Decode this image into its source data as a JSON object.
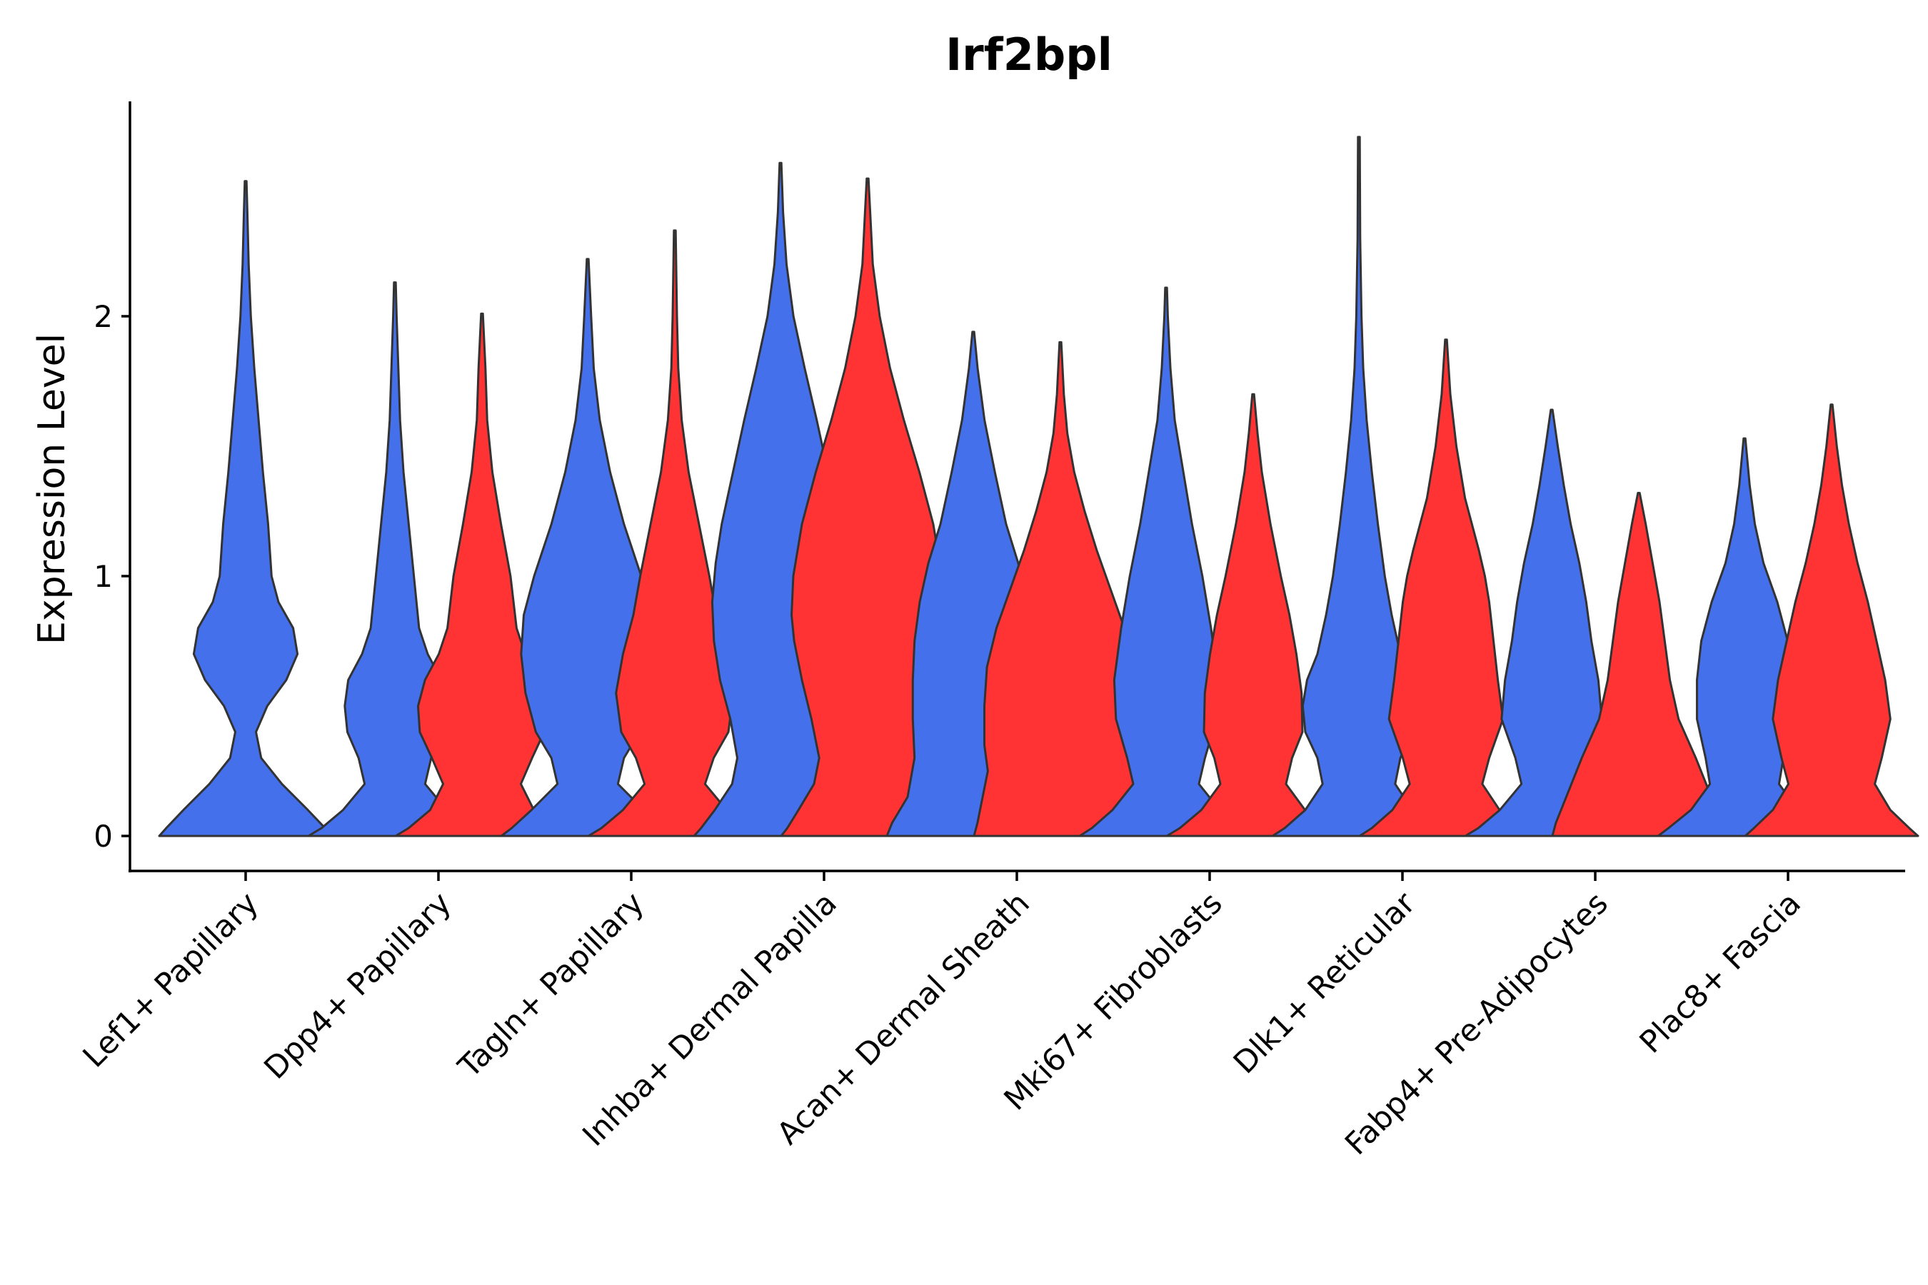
{
  "chart_data": {
    "type": "violin",
    "title": "Irf2bpl",
    "xlabel": "",
    "ylabel": "Expression Level",
    "ylim": [
      -0.14,
      2.82
    ],
    "yticks": [
      0,
      1,
      2
    ],
    "grid": false,
    "legend": "none",
    "colors": {
      "group1": "#4570EC",
      "group2": "#FF3333",
      "outline": "#333333"
    },
    "categories": [
      "Lef1+ Papillary",
      "Dpp4+ Papillary",
      "Tagln+ Papillary",
      "Inhba+ Dermal Papilla",
      "Acan+ Dermal Sheath",
      "Mki67+ Fibroblasts",
      "Dlk1+ Reticular",
      "Fabp4+ Pre-Adipocytes",
      "Plac8+ Fascia"
    ],
    "series": [
      {
        "name": "group1",
        "color": "#4570EC",
        "max": [
          2.52,
          2.13,
          2.22,
          2.59,
          1.94,
          2.11,
          2.69,
          1.64,
          1.53
        ]
      },
      {
        "name": "group2",
        "color": "#FF3333",
        "max": [
          null,
          2.01,
          2.33,
          2.53,
          1.9,
          1.7,
          1.91,
          1.32,
          1.66
        ]
      }
    ],
    "violins": [
      {
        "category": 0,
        "group": 0,
        "max": 2.52,
        "profile": [
          [
            0,
            1
          ],
          [
            0.03,
            0.92
          ],
          [
            0.1,
            0.72
          ],
          [
            0.2,
            0.42
          ],
          [
            0.3,
            0.18
          ],
          [
            0.4,
            0.12
          ],
          [
            0.5,
            0.25
          ],
          [
            0.6,
            0.47
          ],
          [
            0.7,
            0.6
          ],
          [
            0.8,
            0.55
          ],
          [
            0.9,
            0.38
          ],
          [
            1.0,
            0.3
          ],
          [
            1.2,
            0.26
          ],
          [
            1.4,
            0.2
          ],
          [
            1.6,
            0.15
          ],
          [
            1.8,
            0.1
          ],
          [
            2.0,
            0.06
          ],
          [
            2.2,
            0.035
          ],
          [
            2.4,
            0.02
          ],
          [
            2.52,
            0.01
          ]
        ]
      },
      {
        "category": 1,
        "group": 0,
        "max": 2.13,
        "profile": [
          [
            0,
            1
          ],
          [
            0.03,
            0.85
          ],
          [
            0.1,
            0.6
          ],
          [
            0.2,
            0.35
          ],
          [
            0.3,
            0.42
          ],
          [
            0.4,
            0.55
          ],
          [
            0.5,
            0.58
          ],
          [
            0.6,
            0.54
          ],
          [
            0.7,
            0.38
          ],
          [
            0.8,
            0.28
          ],
          [
            1.0,
            0.22
          ],
          [
            1.2,
            0.16
          ],
          [
            1.4,
            0.1
          ],
          [
            1.6,
            0.06
          ],
          [
            1.8,
            0.04
          ],
          [
            2.0,
            0.02
          ],
          [
            2.13,
            0.01
          ]
        ]
      },
      {
        "category": 1,
        "group": 1,
        "max": 2.01,
        "profile": [
          [
            0,
            1
          ],
          [
            0.03,
            0.85
          ],
          [
            0.1,
            0.6
          ],
          [
            0.2,
            0.45
          ],
          [
            0.3,
            0.58
          ],
          [
            0.4,
            0.72
          ],
          [
            0.5,
            0.74
          ],
          [
            0.6,
            0.66
          ],
          [
            0.7,
            0.5
          ],
          [
            0.8,
            0.4
          ],
          [
            1.0,
            0.33
          ],
          [
            1.2,
            0.22
          ],
          [
            1.4,
            0.12
          ],
          [
            1.6,
            0.06
          ],
          [
            1.8,
            0.04
          ],
          [
            2.01,
            0.01
          ]
        ]
      },
      {
        "category": 2,
        "group": 0,
        "max": 2.22,
        "profile": [
          [
            0,
            1
          ],
          [
            0.03,
            0.88
          ],
          [
            0.1,
            0.65
          ],
          [
            0.2,
            0.35
          ],
          [
            0.3,
            0.42
          ],
          [
            0.4,
            0.6
          ],
          [
            0.55,
            0.72
          ],
          [
            0.7,
            0.77
          ],
          [
            0.85,
            0.74
          ],
          [
            1.0,
            0.62
          ],
          [
            1.2,
            0.42
          ],
          [
            1.4,
            0.26
          ],
          [
            1.6,
            0.14
          ],
          [
            1.8,
            0.07
          ],
          [
            2.0,
            0.04
          ],
          [
            2.22,
            0.01
          ]
        ]
      },
      {
        "category": 2,
        "group": 1,
        "max": 2.33,
        "profile": [
          [
            0,
            1
          ],
          [
            0.03,
            0.85
          ],
          [
            0.1,
            0.6
          ],
          [
            0.2,
            0.35
          ],
          [
            0.3,
            0.45
          ],
          [
            0.4,
            0.62
          ],
          [
            0.55,
            0.68
          ],
          [
            0.7,
            0.6
          ],
          [
            0.85,
            0.48
          ],
          [
            1.0,
            0.4
          ],
          [
            1.2,
            0.28
          ],
          [
            1.4,
            0.16
          ],
          [
            1.6,
            0.08
          ],
          [
            1.8,
            0.04
          ],
          [
            2.0,
            0.025
          ],
          [
            2.33,
            0.01
          ]
        ]
      },
      {
        "category": 3,
        "group": 0,
        "max": 2.59,
        "profile": [
          [
            0,
            1
          ],
          [
            0.03,
            0.92
          ],
          [
            0.1,
            0.76
          ],
          [
            0.2,
            0.56
          ],
          [
            0.3,
            0.5
          ],
          [
            0.45,
            0.58
          ],
          [
            0.6,
            0.7
          ],
          [
            0.75,
            0.77
          ],
          [
            0.9,
            0.79
          ],
          [
            1.05,
            0.75
          ],
          [
            1.2,
            0.68
          ],
          [
            1.4,
            0.55
          ],
          [
            1.6,
            0.42
          ],
          [
            1.8,
            0.28
          ],
          [
            2.0,
            0.15
          ],
          [
            2.2,
            0.07
          ],
          [
            2.4,
            0.03
          ],
          [
            2.59,
            0.01
          ]
        ]
      },
      {
        "category": 3,
        "group": 1,
        "max": 2.53,
        "profile": [
          [
            0,
            1
          ],
          [
            0.03,
            0.93
          ],
          [
            0.1,
            0.8
          ],
          [
            0.2,
            0.62
          ],
          [
            0.3,
            0.56
          ],
          [
            0.45,
            0.65
          ],
          [
            0.6,
            0.76
          ],
          [
            0.75,
            0.85
          ],
          [
            0.85,
            0.88
          ],
          [
            1.0,
            0.86
          ],
          [
            1.2,
            0.76
          ],
          [
            1.4,
            0.6
          ],
          [
            1.6,
            0.42
          ],
          [
            1.8,
            0.26
          ],
          [
            2.0,
            0.14
          ],
          [
            2.2,
            0.06
          ],
          [
            2.4,
            0.03
          ],
          [
            2.53,
            0.01
          ]
        ]
      },
      {
        "category": 4,
        "group": 0,
        "max": 1.94,
        "profile": [
          [
            0,
            1
          ],
          [
            0.05,
            0.94
          ],
          [
            0.15,
            0.76
          ],
          [
            0.3,
            0.68
          ],
          [
            0.45,
            0.7
          ],
          [
            0.6,
            0.7
          ],
          [
            0.75,
            0.68
          ],
          [
            0.9,
            0.62
          ],
          [
            1.05,
            0.52
          ],
          [
            1.2,
            0.38
          ],
          [
            1.4,
            0.25
          ],
          [
            1.6,
            0.13
          ],
          [
            1.8,
            0.05
          ],
          [
            1.94,
            0.01
          ]
        ]
      },
      {
        "category": 4,
        "group": 1,
        "max": 1.9,
        "profile": [
          [
            0,
            1
          ],
          [
            0.05,
            0.96
          ],
          [
            0.15,
            0.9
          ],
          [
            0.25,
            0.84
          ],
          [
            0.35,
            0.88
          ],
          [
            0.5,
            0.88
          ],
          [
            0.65,
            0.85
          ],
          [
            0.8,
            0.74
          ],
          [
            0.95,
            0.58
          ],
          [
            1.1,
            0.42
          ],
          [
            1.25,
            0.28
          ],
          [
            1.4,
            0.16
          ],
          [
            1.55,
            0.08
          ],
          [
            1.7,
            0.04
          ],
          [
            1.9,
            0.01
          ]
        ]
      },
      {
        "category": 5,
        "group": 0,
        "max": 2.11,
        "profile": [
          [
            0,
            1
          ],
          [
            0.03,
            0.86
          ],
          [
            0.1,
            0.62
          ],
          [
            0.2,
            0.38
          ],
          [
            0.3,
            0.45
          ],
          [
            0.45,
            0.58
          ],
          [
            0.6,
            0.6
          ],
          [
            0.8,
            0.52
          ],
          [
            1.0,
            0.42
          ],
          [
            1.2,
            0.3
          ],
          [
            1.4,
            0.2
          ],
          [
            1.6,
            0.1
          ],
          [
            1.8,
            0.05
          ],
          [
            2.0,
            0.02
          ],
          [
            2.11,
            0.01
          ]
        ]
      },
      {
        "category": 5,
        "group": 1,
        "max": 1.7,
        "profile": [
          [
            0,
            1
          ],
          [
            0.03,
            0.85
          ],
          [
            0.1,
            0.6
          ],
          [
            0.2,
            0.38
          ],
          [
            0.3,
            0.45
          ],
          [
            0.4,
            0.57
          ],
          [
            0.55,
            0.56
          ],
          [
            0.7,
            0.5
          ],
          [
            0.85,
            0.42
          ],
          [
            1.0,
            0.32
          ],
          [
            1.2,
            0.2
          ],
          [
            1.4,
            0.1
          ],
          [
            1.55,
            0.05
          ],
          [
            1.7,
            0.01
          ]
        ]
      },
      {
        "category": 6,
        "group": 0,
        "max": 2.69,
        "profile": [
          [
            0,
            1
          ],
          [
            0.03,
            0.86
          ],
          [
            0.1,
            0.62
          ],
          [
            0.2,
            0.42
          ],
          [
            0.3,
            0.48
          ],
          [
            0.4,
            0.62
          ],
          [
            0.5,
            0.65
          ],
          [
            0.6,
            0.6
          ],
          [
            0.7,
            0.48
          ],
          [
            0.85,
            0.38
          ],
          [
            1.0,
            0.3
          ],
          [
            1.2,
            0.22
          ],
          [
            1.4,
            0.15
          ],
          [
            1.6,
            0.09
          ],
          [
            1.8,
            0.05
          ],
          [
            2.0,
            0.03
          ],
          [
            2.3,
            0.015
          ],
          [
            2.69,
            0.01
          ]
        ]
      },
      {
        "category": 6,
        "group": 1,
        "max": 1.91,
        "profile": [
          [
            0,
            1
          ],
          [
            0.03,
            0.86
          ],
          [
            0.1,
            0.62
          ],
          [
            0.2,
            0.42
          ],
          [
            0.3,
            0.5
          ],
          [
            0.45,
            0.66
          ],
          [
            0.6,
            0.6
          ],
          [
            0.75,
            0.55
          ],
          [
            0.9,
            0.5
          ],
          [
            1.0,
            0.45
          ],
          [
            1.1,
            0.38
          ],
          [
            1.3,
            0.22
          ],
          [
            1.5,
            0.12
          ],
          [
            1.7,
            0.05
          ],
          [
            1.91,
            0.01
          ]
        ]
      },
      {
        "category": 7,
        "group": 0,
        "max": 1.64,
        "profile": [
          [
            0,
            1
          ],
          [
            0.03,
            0.85
          ],
          [
            0.1,
            0.6
          ],
          [
            0.2,
            0.35
          ],
          [
            0.3,
            0.42
          ],
          [
            0.45,
            0.58
          ],
          [
            0.6,
            0.54
          ],
          [
            0.75,
            0.46
          ],
          [
            0.9,
            0.4
          ],
          [
            1.05,
            0.32
          ],
          [
            1.2,
            0.22
          ],
          [
            1.35,
            0.14
          ],
          [
            1.5,
            0.07
          ],
          [
            1.64,
            0.01
          ]
        ]
      },
      {
        "category": 7,
        "group": 1,
        "max": 1.32,
        "profile": [
          [
            0,
            1
          ],
          [
            0.05,
            0.96
          ],
          [
            0.15,
            0.84
          ],
          [
            0.3,
            0.66
          ],
          [
            0.45,
            0.46
          ],
          [
            0.6,
            0.36
          ],
          [
            0.75,
            0.3
          ],
          [
            0.9,
            0.24
          ],
          [
            1.05,
            0.16
          ],
          [
            1.2,
            0.08
          ],
          [
            1.32,
            0.01
          ]
        ]
      },
      {
        "category": 8,
        "group": 0,
        "max": 1.53,
        "profile": [
          [
            0,
            1
          ],
          [
            0.03,
            0.88
          ],
          [
            0.1,
            0.62
          ],
          [
            0.2,
            0.4
          ],
          [
            0.3,
            0.45
          ],
          [
            0.45,
            0.55
          ],
          [
            0.6,
            0.55
          ],
          [
            0.75,
            0.5
          ],
          [
            0.9,
            0.38
          ],
          [
            1.05,
            0.22
          ],
          [
            1.2,
            0.12
          ],
          [
            1.35,
            0.06
          ],
          [
            1.53,
            0.01
          ]
        ]
      },
      {
        "category": 8,
        "group": 1,
        "max": 1.66,
        "profile": [
          [
            0,
            1
          ],
          [
            0.03,
            0.9
          ],
          [
            0.1,
            0.68
          ],
          [
            0.2,
            0.5
          ],
          [
            0.3,
            0.58
          ],
          [
            0.45,
            0.68
          ],
          [
            0.6,
            0.62
          ],
          [
            0.75,
            0.52
          ],
          [
            0.9,
            0.42
          ],
          [
            1.05,
            0.3
          ],
          [
            1.2,
            0.2
          ],
          [
            1.35,
            0.12
          ],
          [
            1.5,
            0.06
          ],
          [
            1.66,
            0.01
          ]
        ]
      }
    ]
  }
}
